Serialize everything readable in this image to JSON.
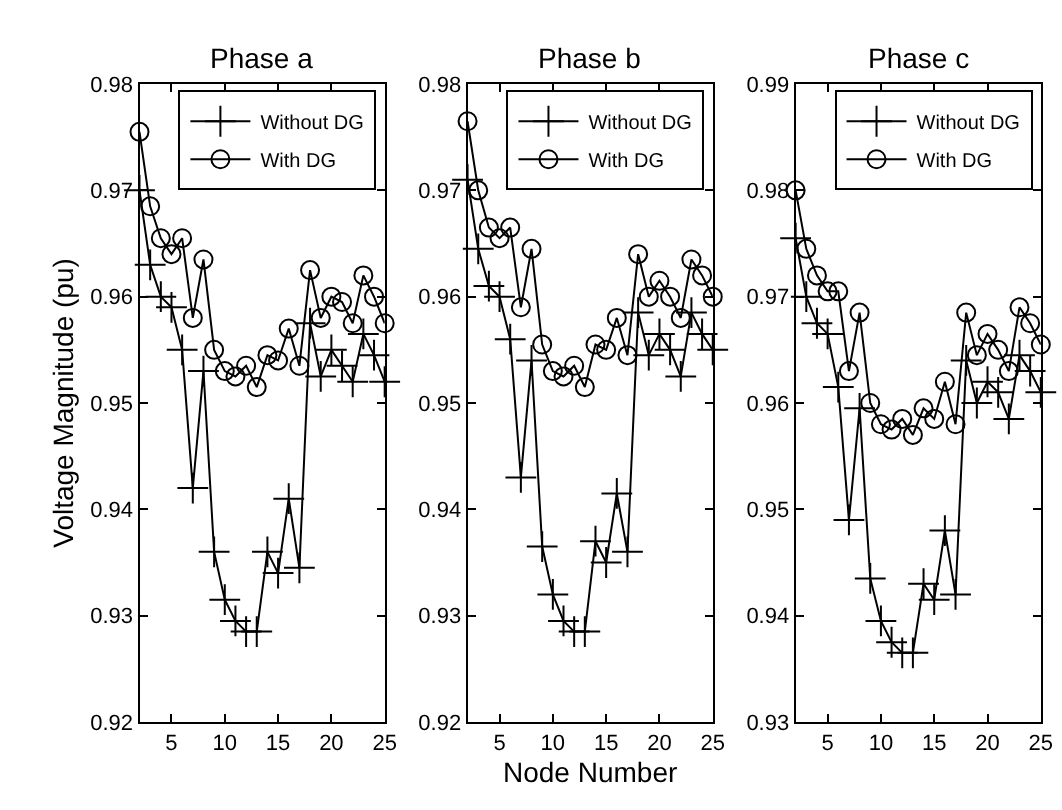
{
  "chart_data": [
    {
      "type": "line",
      "title": "Phase a",
      "ylabel": "Voltage Magnitude (pu)",
      "x": [
        2,
        3,
        4,
        5,
        6,
        7,
        8,
        9,
        10,
        11,
        12,
        13,
        14,
        15,
        16,
        17,
        18,
        19,
        20,
        21,
        22,
        23,
        24,
        25
      ],
      "xlim": [
        2,
        25
      ],
      "xticks": [
        5,
        10,
        15,
        20,
        25
      ],
      "ylim": [
        0.92,
        0.98
      ],
      "yticks": [
        0.92,
        0.93,
        0.94,
        0.95,
        0.96,
        0.97,
        0.98
      ],
      "legend": "top right",
      "line_style": "solid",
      "series": [
        {
          "name": "Without DG",
          "color": "#000000",
          "marker": "cross",
          "values": [
            0.97,
            0.963,
            0.96,
            0.959,
            0.955,
            0.942,
            0.953,
            0.936,
            0.9315,
            0.9295,
            0.9285,
            0.9285,
            0.936,
            0.934,
            0.941,
            0.9345,
            0.9575,
            0.9525,
            0.955,
            0.9535,
            0.952,
            0.9565,
            0.9545,
            0.952
          ]
        },
        {
          "name": "With DG",
          "color": "#000000",
          "marker": "circle",
          "values": [
            0.9755,
            0.9685,
            0.9655,
            0.964,
            0.9655,
            0.958,
            0.9635,
            0.955,
            0.953,
            0.9525,
            0.9535,
            0.9515,
            0.9545,
            0.954,
            0.957,
            0.9535,
            0.9625,
            0.958,
            0.96,
            0.9595,
            0.9575,
            0.962,
            0.96,
            0.9575
          ]
        }
      ]
    },
    {
      "type": "line",
      "title": "Phase b",
      "xlabel": "Node Number",
      "x": [
        2,
        3,
        4,
        5,
        6,
        7,
        8,
        9,
        10,
        11,
        12,
        13,
        14,
        15,
        16,
        17,
        18,
        19,
        20,
        21,
        22,
        23,
        24,
        25
      ],
      "xlim": [
        2,
        25
      ],
      "xticks": [
        5,
        10,
        15,
        20,
        25
      ],
      "ylim": [
        0.92,
        0.98
      ],
      "yticks": [
        0.92,
        0.93,
        0.94,
        0.95,
        0.96,
        0.97,
        0.98
      ],
      "legend": "top right",
      "line_style": "solid",
      "series": [
        {
          "name": "Without DG",
          "color": "#000000",
          "marker": "cross",
          "values": [
            0.971,
            0.9645,
            0.961,
            0.96,
            0.956,
            0.943,
            0.954,
            0.9365,
            0.932,
            0.9295,
            0.9285,
            0.9285,
            0.937,
            0.935,
            0.9415,
            0.936,
            0.9585,
            0.9545,
            0.9565,
            0.955,
            0.9525,
            0.9585,
            0.9565,
            0.955
          ]
        },
        {
          "name": "With DG",
          "color": "#000000",
          "marker": "circle",
          "values": [
            0.9765,
            0.97,
            0.9665,
            0.9655,
            0.9665,
            0.959,
            0.9645,
            0.9555,
            0.953,
            0.9525,
            0.9535,
            0.9515,
            0.9555,
            0.955,
            0.958,
            0.9545,
            0.964,
            0.96,
            0.9615,
            0.96,
            0.958,
            0.9635,
            0.962,
            0.96
          ]
        }
      ]
    },
    {
      "type": "line",
      "title": "Phase c",
      "x": [
        2,
        3,
        4,
        5,
        6,
        7,
        8,
        9,
        10,
        11,
        12,
        13,
        14,
        15,
        16,
        17,
        18,
        19,
        20,
        21,
        22,
        23,
        24,
        25
      ],
      "xlim": [
        2,
        25
      ],
      "xticks": [
        5,
        10,
        15,
        20,
        25
      ],
      "ylim": [
        0.93,
        0.99
      ],
      "yticks": [
        0.93,
        0.94,
        0.95,
        0.96,
        0.97,
        0.98,
        0.99
      ],
      "legend": "top right",
      "line_style": "solid",
      "series": [
        {
          "name": "Without DG",
          "color": "#000000",
          "marker": "cross",
          "values": [
            0.9755,
            0.97,
            0.9675,
            0.9665,
            0.9615,
            0.949,
            0.9595,
            0.9435,
            0.9395,
            0.9375,
            0.9365,
            0.9365,
            0.943,
            0.9415,
            0.948,
            0.942,
            0.964,
            0.96,
            0.962,
            0.961,
            0.9585,
            0.9645,
            0.963,
            0.961
          ]
        },
        {
          "name": "With DG",
          "color": "#000000",
          "marker": "circle",
          "values": [
            0.98,
            0.9745,
            0.972,
            0.9705,
            0.9705,
            0.963,
            0.9685,
            0.96,
            0.958,
            0.9575,
            0.9585,
            0.957,
            0.9595,
            0.9585,
            0.962,
            0.958,
            0.9685,
            0.9645,
            0.9665,
            0.965,
            0.963,
            0.969,
            0.9675,
            0.9655
          ]
        }
      ]
    }
  ]
}
